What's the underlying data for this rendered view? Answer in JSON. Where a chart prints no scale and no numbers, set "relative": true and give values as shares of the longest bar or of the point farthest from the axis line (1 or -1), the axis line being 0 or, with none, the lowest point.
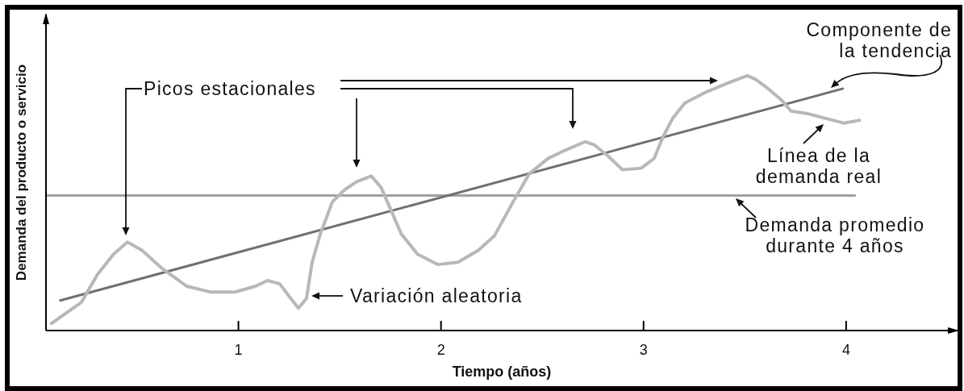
{
  "chart_data": {
    "type": "line",
    "xlabel": "Tiempo (años)",
    "ylabel": "Demanda del producto o servicio",
    "relative": true,
    "xlim": [
      0.05,
      4.55
    ],
    "xticks": [
      1,
      2,
      3,
      4
    ],
    "grid": false,
    "marker": "none",
    "line_style": "solid",
    "series": [
      {
        "color": "#b8b8b8",
        "x": [
          0.072,
          0.224,
          0.304,
          0.384,
          0.452,
          0.524,
          0.624,
          0.744,
          0.864,
          0.984,
          1.084,
          1.144,
          1.204,
          1.264,
          1.296,
          1.336,
          1.364,
          1.404,
          1.464,
          1.524,
          1.584,
          1.656,
          1.704,
          1.744,
          1.804,
          1.884,
          1.984,
          2.084,
          2.184,
          2.264,
          2.356,
          2.436,
          2.528,
          2.62,
          2.712,
          2.756,
          2.82,
          2.896,
          2.988,
          3.052,
          3.096,
          3.144,
          3.204,
          3.312,
          3.42,
          3.512,
          3.556,
          3.62,
          3.68,
          3.728,
          3.804,
          3.896,
          3.988,
          4.072
        ],
        "values": [
          0.025,
          0.11,
          0.22,
          0.3,
          0.347,
          0.315,
          0.243,
          0.174,
          0.151,
          0.151,
          0.174,
          0.196,
          0.183,
          0.12,
          0.088,
          0.126,
          0.268,
          0.379,
          0.505,
          0.552,
          0.584,
          0.606,
          0.562,
          0.489,
          0.379,
          0.3,
          0.259,
          0.268,
          0.315,
          0.372,
          0.505,
          0.615,
          0.675,
          0.71,
          0.741,
          0.729,
          0.688,
          0.631,
          0.637,
          0.675,
          0.76,
          0.833,
          0.893,
          0.937,
          0.972,
          1.0,
          0.984,
          0.946,
          0.905,
          0.861,
          0.852,
          0.833,
          0.814,
          0.826
        ]
      },
      {
        "color": "#707070",
        "x": [
          0.116,
          3.988
        ],
        "values": [
          0.117,
          0.95
        ]
      }
    ],
    "ref_lines": [
      {
        "axis": "y",
        "value": 0.53,
        "color": "#a0a0a0"
      }
    ],
    "annotations": [
      "Picos estacionales",
      "Variación aleatoria",
      "Componente de\nla tendencia",
      "Línea de la\ndemanda real",
      "Demanda promedio\ndurante 4 años"
    ]
  }
}
